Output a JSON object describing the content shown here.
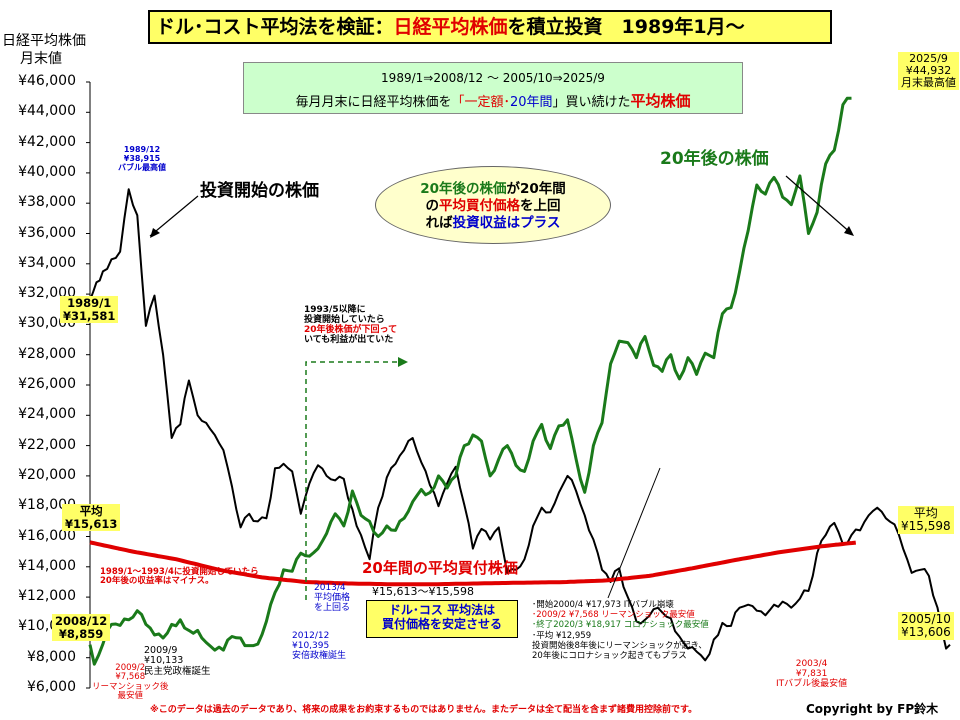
{
  "header": {
    "title_part1": "ドル･コスト平均法を検証：",
    "title_part2": "日経平均株価",
    "title_part3": "を積立投資　1989年1月～"
  },
  "y_axis_title_line1": "日経平均株価",
  "y_axis_title_line2": "月末値",
  "subtitle": {
    "line1": "1989/1⇒2008/12 ～ 2005/10⇒2025/9",
    "line2_a": "毎月月末に日経平均株価を",
    "line2_b": "「一定額･",
    "line2_c": "20年間",
    "line2_d": "」買い続けた",
    "line2_e": "平均株価"
  },
  "callout": {
    "l1a": "20年後の株価",
    "l1b": "が20年間",
    "l2a": "の",
    "l2b": "平均買付価格",
    "l2c": "を上回",
    "l3a": "れば",
    "l3b": "投資収益はプラス"
  },
  "labels": {
    "start_price": "投資開始の株価",
    "price_after_20y": "20年後の株価",
    "avg_price_20y": "20年間の平均買付株価",
    "bubble_peak_date": "1989/12",
    "bubble_peak_value": "¥38,915",
    "bubble_peak_name": "バブル最高値",
    "start_date": "1989/1",
    "start_value": "¥31,581",
    "avg_left_label": "平均",
    "avg_left_value": "¥15,613",
    "left_end_date": "2008/12",
    "left_end_value": "¥8,859",
    "lehman_low_1": "2009/2",
    "lehman_low_2": "¥7,568",
    "lehman_low_3": "リーマンショック後",
    "lehman_low_4": "最安値",
    "dpj_1": "2009/9",
    "dpj_2": "¥10,133",
    "dpj_3": "民主党政権誕生",
    "abe_1": "2012/12",
    "abe_2": "¥10,395",
    "abe_3": "安倍政権誕生",
    "cross_1": "2013/4",
    "cross_2": "平均価格",
    "cross_3": "を上回る",
    "loss_note_1": "1989/1～1993/4に投資開始していたら",
    "loss_note_2": "20年後の収益率はマイナス。",
    "note_1993_1": "1993/5以降に",
    "note_1993_2": "投資開始していたら",
    "note_1993_3": "20年後株価が下回って",
    "note_1993_4": "いても利益が出ていた",
    "dca_box_1": "ドル･コス 平均法は",
    "dca_box_2": "買付価格を安定させる",
    "info_1": "･開始2000/4 ¥17,973 ITバブル崩壊",
    "info_2": "･2009/2 ¥7,568 リーマンショック最安値",
    "info_3": "･終了2020/3 ¥18,917 コロナショック最安値",
    "info_4": "･平均 ¥12,959",
    "info_5": "投資開始後8年後にリーマンショックが起き、",
    "info_6": "20年後にコロナショック起きてもプラス",
    "it_low_1": "2003/4",
    "it_low_2": "¥7,831",
    "it_low_3": "ITバブル後最安値",
    "right_peak_date": "2025/9",
    "right_peak_value": "¥44,932",
    "right_peak_name": "月末最高値",
    "avg_right_label": "平均",
    "avg_right_value": "¥15,598",
    "right_end_date": "2005/10",
    "right_end_value": "¥13,606",
    "range_label": "¥15,613～¥15,598"
  },
  "footer": {
    "disclaimer": "※このデータは過去のデータであり、将来の成果をお約束するものではありません。またデータは全て配当を含まず諸費用控除前です。",
    "copyright": "Copyright by FP鈴木"
  },
  "chart_data": {
    "type": "line",
    "title": "ドル･コスト平均法を検証：日経平均株価を積立投資　1989年1月～",
    "ylabel": "日経平均株価 月末値",
    "ylim": [
      6000,
      46000
    ],
    "yticks": [
      6000,
      8000,
      10000,
      12000,
      14000,
      16000,
      18000,
      20000,
      22000,
      24000,
      26000,
      28000,
      30000,
      32000,
      34000,
      36000,
      38000,
      40000,
      42000,
      44000,
      46000
    ],
    "ytick_labels": [
      "¥6,000",
      "¥8,000",
      "¥10,000",
      "¥12,000",
      "¥14,000",
      "¥16,000",
      "¥18,000",
      "¥20,000",
      "¥22,000",
      "¥24,000",
      "¥26,000",
      "¥28,000",
      "¥30,000",
      "¥32,000",
      "¥34,000",
      "¥36,000",
      "¥38,000",
      "¥40,000",
      "¥42,000",
      "¥44,000",
      "¥46,000"
    ],
    "grid": false,
    "x_start": "1989/1",
    "x_end": "2008/12",
    "points_per_series": 240,
    "colors": {
      "start_price": "#000000",
      "after_20y": "#1a7a1a",
      "avg": "#e00000"
    },
    "series": [
      {
        "name": "投資開始の株価",
        "period": "1989/1-2008/12",
        "keypoints": [
          [
            1989.0,
            31581
          ],
          [
            1989.3,
            33500
          ],
          [
            1989.5,
            34300
          ],
          [
            1989.7,
            34800
          ],
          [
            1989.9,
            38915
          ],
          [
            1990.1,
            37200
          ],
          [
            1990.3,
            29900
          ],
          [
            1990.5,
            31900
          ],
          [
            1990.7,
            28000
          ],
          [
            1990.9,
            22500
          ],
          [
            1991.1,
            23400
          ],
          [
            1991.3,
            26300
          ],
          [
            1991.5,
            24000
          ],
          [
            1991.7,
            23500
          ],
          [
            1991.9,
            22700
          ],
          [
            1992.1,
            21700
          ],
          [
            1992.3,
            19300
          ],
          [
            1992.5,
            16600
          ],
          [
            1992.7,
            17500
          ],
          [
            1992.9,
            17000
          ],
          [
            1993.1,
            17200
          ],
          [
            1993.3,
            20500
          ],
          [
            1993.5,
            20800
          ],
          [
            1993.7,
            20300
          ],
          [
            1993.9,
            17500
          ],
          [
            1994.1,
            19500
          ],
          [
            1994.3,
            20700
          ],
          [
            1994.5,
            20000
          ],
          [
            1994.7,
            19700
          ],
          [
            1994.9,
            19800
          ],
          [
            1995.1,
            17800
          ],
          [
            1995.3,
            16100
          ],
          [
            1995.5,
            14500
          ],
          [
            1995.7,
            17900
          ],
          [
            1995.9,
            19900
          ],
          [
            1996.1,
            20800
          ],
          [
            1996.3,
            21700
          ],
          [
            1996.5,
            22500
          ],
          [
            1996.7,
            20900
          ],
          [
            1996.9,
            19400
          ],
          [
            1997.1,
            18000
          ],
          [
            1997.3,
            19500
          ],
          [
            1997.5,
            20600
          ],
          [
            1997.7,
            18100
          ],
          [
            1997.9,
            15200
          ],
          [
            1998.1,
            16500
          ],
          [
            1998.3,
            15800
          ],
          [
            1998.5,
            16600
          ],
          [
            1998.7,
            13600
          ],
          [
            1998.9,
            13800
          ],
          [
            1999.1,
            14500
          ],
          [
            1999.3,
            16700
          ],
          [
            1999.5,
            17900
          ],
          [
            1999.7,
            17600
          ],
          [
            1999.9,
            18900
          ],
          [
            2000.1,
            20000
          ],
          [
            2000.3,
            19000
          ],
          [
            2000.5,
            17400
          ],
          [
            2000.7,
            15800
          ],
          [
            2000.9,
            13800
          ],
          [
            2001.1,
            13000
          ],
          [
            2001.3,
            13900
          ],
          [
            2001.5,
            12000
          ],
          [
            2001.7,
            10400
          ],
          [
            2001.9,
            10500
          ],
          [
            2002.1,
            11200
          ],
          [
            2002.3,
            11000
          ],
          [
            2002.5,
            10600
          ],
          [
            2002.7,
            9400
          ],
          [
            2002.9,
            8600
          ],
          [
            2003.1,
            8400
          ],
          [
            2003.3,
            7831
          ],
          [
            2003.5,
            9200
          ],
          [
            2003.7,
            10300
          ],
          [
            2003.9,
            10100
          ],
          [
            2004.1,
            11300
          ],
          [
            2004.3,
            11500
          ],
          [
            2004.5,
            11100
          ],
          [
            2004.7,
            10800
          ],
          [
            2004.9,
            11500
          ],
          [
            2005.1,
            11700
          ],
          [
            2005.3,
            11300
          ],
          [
            2005.5,
            11900
          ],
          [
            2005.7,
            12400
          ],
          [
            2005.9,
            14900
          ],
          [
            2006.1,
            16100
          ],
          [
            2006.3,
            16900
          ],
          [
            2006.5,
            15500
          ],
          [
            2006.7,
            16100
          ],
          [
            2006.9,
            16400
          ],
          [
            2007.1,
            17400
          ],
          [
            2007.3,
            17900
          ],
          [
            2007.5,
            17200
          ],
          [
            2007.7,
            16800
          ],
          [
            2007.9,
            15200
          ],
          [
            2008.1,
            13600
          ],
          [
            2008.3,
            13800
          ],
          [
            2008.5,
            13400
          ],
          [
            2008.7,
            11300
          ],
          [
            2008.9,
            8600
          ],
          [
            2008.99,
            8859
          ]
        ]
      },
      {
        "name": "20年後の株価",
        "period": "2008/12-2025/9 (aligned to start month)",
        "keypoints": [
          [
            1989.0,
            8859
          ],
          [
            1989.1,
            7568
          ],
          [
            1989.3,
            8900
          ],
          [
            1989.5,
            10200
          ],
          [
            1989.7,
            10133
          ],
          [
            1989.9,
            10500
          ],
          [
            1990.1,
            11100
          ],
          [
            1990.3,
            10200
          ],
          [
            1990.5,
            9500
          ],
          [
            1990.7,
            9300
          ],
          [
            1990.9,
            10200
          ],
          [
            1991.1,
            10500
          ],
          [
            1991.3,
            9800
          ],
          [
            1991.5,
            9800
          ],
          [
            1991.7,
            9000
          ],
          [
            1991.9,
            8500
          ],
          [
            1992.1,
            8500
          ],
          [
            1992.3,
            9400
          ],
          [
            1992.5,
            9300
          ],
          [
            1992.7,
            8800
          ],
          [
            1992.9,
            8900
          ],
          [
            1993.1,
            10395
          ],
          [
            1993.3,
            12300
          ],
          [
            1993.5,
            13800
          ],
          [
            1993.7,
            13700
          ],
          [
            1993.9,
            14900
          ],
          [
            1994.1,
            14700
          ],
          [
            1994.3,
            15200
          ],
          [
            1994.5,
            16200
          ],
          [
            1994.7,
            17500
          ],
          [
            1994.9,
            16700
          ],
          [
            1995.1,
            19000
          ],
          [
            1995.3,
            17400
          ],
          [
            1995.5,
            17000
          ],
          [
            1995.7,
            16000
          ],
          [
            1995.9,
            16700
          ],
          [
            1996.1,
            16400
          ],
          [
            1996.3,
            17200
          ],
          [
            1996.5,
            18300
          ],
          [
            1996.7,
            19100
          ],
          [
            1996.9,
            18900
          ],
          [
            1997.1,
            20000
          ],
          [
            1997.3,
            19200
          ],
          [
            1997.5,
            20000
          ],
          [
            1997.7,
            22000
          ],
          [
            1997.9,
            22700
          ],
          [
            1998.1,
            22300
          ],
          [
            1998.3,
            20000
          ],
          [
            1998.5,
            21100
          ],
          [
            1998.7,
            22000
          ],
          [
            1998.9,
            20700
          ],
          [
            1999.1,
            20300
          ],
          [
            1999.3,
            22300
          ],
          [
            1999.5,
            23400
          ],
          [
            1999.7,
            21800
          ],
          [
            1999.9,
            23300
          ],
          [
            2000.1,
            23700
          ],
          [
            2000.3,
            21100
          ],
          [
            2000.5,
            18917
          ],
          [
            2000.7,
            22000
          ],
          [
            2000.9,
            23500
          ],
          [
            2001.1,
            27400
          ],
          [
            2001.3,
            28900
          ],
          [
            2001.5,
            28800
          ],
          [
            2001.7,
            27800
          ],
          [
            2001.9,
            29200
          ],
          [
            2002.1,
            27300
          ],
          [
            2002.3,
            26900
          ],
          [
            2002.5,
            28000
          ],
          [
            2002.7,
            26400
          ],
          [
            2002.9,
            27800
          ],
          [
            2003.1,
            26700
          ],
          [
            2003.3,
            28100
          ],
          [
            2003.5,
            27800
          ],
          [
            2003.7,
            30700
          ],
          [
            2003.9,
            31100
          ],
          [
            2004.1,
            33500
          ],
          [
            2004.3,
            36200
          ],
          [
            2004.5,
            39200
          ],
          [
            2004.7,
            38600
          ],
          [
            2004.9,
            39700
          ],
          [
            2005.1,
            38400
          ],
          [
            2005.3,
            37900
          ],
          [
            2005.5,
            39800
          ],
          [
            2005.7,
            36000
          ],
          [
            2005.9,
            37400
          ],
          [
            2006.1,
            40600
          ],
          [
            2006.3,
            41500
          ],
          [
            2006.5,
            44500
          ],
          [
            2006.7,
            44932
          ]
        ]
      },
      {
        "name": "20年間の平均買付株価",
        "period": "rolling 20y average",
        "keypoints": [
          [
            1989.0,
            15613
          ],
          [
            1990.0,
            15000
          ],
          [
            1991.0,
            14500
          ],
          [
            1992.0,
            13800
          ],
          [
            1993.0,
            13300
          ],
          [
            1994.0,
            13000
          ],
          [
            1995.0,
            12900
          ],
          [
            1996.0,
            12850
          ],
          [
            1997.0,
            12850
          ],
          [
            1998.0,
            12900
          ],
          [
            1999.0,
            12950
          ],
          [
            2000.0,
            12990
          ],
          [
            2001.0,
            13100
          ],
          [
            2002.0,
            13400
          ],
          [
            2003.0,
            13900
          ],
          [
            2004.0,
            14450
          ],
          [
            2005.0,
            14950
          ],
          [
            2006.0,
            15350
          ],
          [
            2006.8,
            15598
          ]
        ]
      }
    ]
  }
}
